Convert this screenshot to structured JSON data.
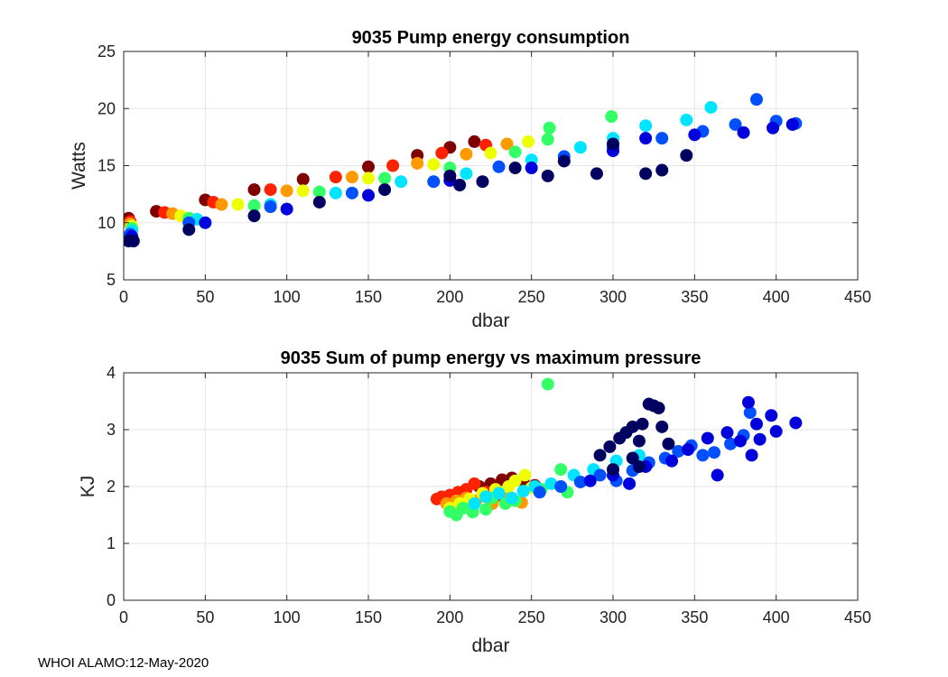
{
  "footer": "WHOI ALAMO:12-May-2020",
  "colors": {
    "grid": "#e6e6e6",
    "axis": "#262626"
  },
  "chart_data": [
    {
      "type": "scatter",
      "title": "9035 Pump energy consumption",
      "xlabel": "dbar",
      "ylabel": "Watts",
      "xlim": [
        0,
        450
      ],
      "ylim": [
        5,
        25
      ],
      "xticks": [
        0,
        50,
        100,
        150,
        200,
        250,
        300,
        350,
        400,
        450
      ],
      "yticks": [
        5,
        10,
        15,
        20,
        25
      ],
      "grid": true,
      "color_scale": "jet (dark red = early profiles, dark blue = late profiles)",
      "series": [
        {
          "name": "dark red profiles",
          "color": "#800000",
          "points": [
            [
              3,
              10.4
            ],
            [
              20,
              11.0
            ],
            [
              50,
              12.0
            ],
            [
              80,
              12.9
            ],
            [
              110,
              13.8
            ],
            [
              150,
              14.9
            ],
            [
              180,
              15.9
            ],
            [
              200,
              16.6
            ],
            [
              215,
              17.1
            ]
          ]
        },
        {
          "name": "red profiles",
          "color": "#ff2200",
          "points": [
            [
              4,
              10.1
            ],
            [
              25,
              10.9
            ],
            [
              55,
              11.8
            ],
            [
              90,
              12.9
            ],
            [
              130,
              14.0
            ],
            [
              165,
              15.0
            ],
            [
              195,
              16.1
            ],
            [
              222,
              16.8
            ]
          ]
        },
        {
          "name": "orange profiles",
          "color": "#ff9900",
          "points": [
            [
              4,
              9.9
            ],
            [
              30,
              10.8
            ],
            [
              60,
              11.6
            ],
            [
              100,
              12.8
            ],
            [
              140,
              14.0
            ],
            [
              180,
              15.2
            ],
            [
              210,
              16.0
            ],
            [
              235,
              16.9
            ]
          ]
        },
        {
          "name": "yellow profiles",
          "color": "#eeff00",
          "points": [
            [
              5,
              9.7
            ],
            [
              35,
              10.6
            ],
            [
              70,
              11.6
            ],
            [
              110,
              12.8
            ],
            [
              150,
              13.9
            ],
            [
              190,
              15.1
            ],
            [
              225,
              16.1
            ],
            [
              248,
              17.1
            ]
          ]
        },
        {
          "name": "green profiles",
          "color": "#33ff66",
          "points": [
            [
              5,
              9.5
            ],
            [
              40,
              10.4
            ],
            [
              80,
              11.5
            ],
            [
              120,
              12.7
            ],
            [
              160,
              13.9
            ],
            [
              200,
              14.8
            ],
            [
              240,
              16.2
            ],
            [
              260,
              17.3
            ],
            [
              261,
              18.3
            ],
            [
              299,
              19.3
            ]
          ]
        },
        {
          "name": "cyan profiles",
          "color": "#00e5ff",
          "points": [
            [
              5,
              9.3
            ],
            [
              45,
              10.3
            ],
            [
              90,
              11.6
            ],
            [
              130,
              12.6
            ],
            [
              170,
              13.6
            ],
            [
              210,
              14.3
            ],
            [
              250,
              15.5
            ],
            [
              280,
              16.6
            ],
            [
              300,
              17.4
            ],
            [
              320,
              18.5
            ],
            [
              345,
              19.0
            ],
            [
              360,
              20.1
            ]
          ]
        },
        {
          "name": "blue profiles",
          "color": "#0050ff",
          "points": [
            [
              4,
              9.0
            ],
            [
              40,
              10.0
            ],
            [
              90,
              11.4
            ],
            [
              140,
              12.6
            ],
            [
              190,
              13.6
            ],
            [
              230,
              14.9
            ],
            [
              270,
              15.8
            ],
            [
              300,
              16.6
            ],
            [
              330,
              17.4
            ],
            [
              355,
              18.0
            ],
            [
              375,
              18.6
            ],
            [
              388,
              20.8
            ],
            [
              400,
              18.9
            ],
            [
              412,
              18.7
            ]
          ]
        },
        {
          "name": "deep blue profiles",
          "color": "#0000dd",
          "points": [
            [
              5,
              8.8
            ],
            [
              50,
              10.0
            ],
            [
              100,
              11.2
            ],
            [
              150,
              12.4
            ],
            [
              200,
              13.7
            ],
            [
              250,
              14.8
            ],
            [
              300,
              16.3
            ],
            [
              320,
              17.4
            ],
            [
              350,
              17.7
            ],
            [
              380,
              17.9
            ],
            [
              398,
              18.3
            ],
            [
              410,
              18.6
            ]
          ]
        },
        {
          "name": "navy profiles",
          "color": "#000060",
          "points": [
            [
              3,
              8.4
            ],
            [
              6,
              8.4
            ],
            [
              40,
              9.4
            ],
            [
              80,
              10.6
            ],
            [
              120,
              11.8
            ],
            [
              160,
              12.9
            ],
            [
              200,
              14.1
            ],
            [
              206,
              13.3
            ],
            [
              220,
              13.6
            ],
            [
              240,
              14.8
            ],
            [
              260,
              14.1
            ],
            [
              270,
              15.4
            ],
            [
              290,
              14.3
            ],
            [
              300,
              16.9
            ],
            [
              320,
              14.3
            ],
            [
              330,
              14.6
            ],
            [
              345,
              15.9
            ]
          ]
        }
      ]
    },
    {
      "type": "scatter",
      "title": "9035 Sum of pump energy vs maximum pressure",
      "xlabel": "dbar",
      "ylabel": "KJ",
      "xlim": [
        0,
        450
      ],
      "ylim": [
        0,
        4
      ],
      "xticks": [
        0,
        50,
        100,
        150,
        200,
        250,
        300,
        350,
        400,
        450
      ],
      "yticks": [
        0,
        1,
        2,
        3,
        4
      ],
      "grid": true,
      "series": [
        {
          "name": "dark red profiles",
          "color": "#800000",
          "points": [
            [
              218,
              2.0
            ],
            [
              225,
              2.05
            ],
            [
              232,
              2.12
            ],
            [
              238,
              2.15
            ],
            [
              245,
              2.1
            ],
            [
              252,
              2.02
            ]
          ]
        },
        {
          "name": "red profiles",
          "color": "#ff2200",
          "points": [
            [
              192,
              1.78
            ],
            [
              195,
              1.82
            ],
            [
              200,
              1.85
            ],
            [
              205,
              1.9
            ],
            [
              210,
              1.95
            ],
            [
              215,
              2.05
            ],
            [
              222,
              1.9
            ],
            [
              230,
              1.85
            ]
          ]
        },
        {
          "name": "orange profiles",
          "color": "#ff9900",
          "points": [
            [
              198,
              1.7
            ],
            [
              204,
              1.75
            ],
            [
              210,
              1.8
            ],
            [
              216,
              1.75
            ],
            [
              226,
              1.7
            ],
            [
              236,
              1.8
            ],
            [
              244,
              1.72
            ]
          ]
        },
        {
          "name": "yellow profiles",
          "color": "#eeff00",
          "points": [
            [
              200,
              1.62
            ],
            [
              206,
              1.7
            ],
            [
              212,
              1.78
            ],
            [
              220,
              1.88
            ],
            [
              228,
              1.95
            ],
            [
              236,
              2.0
            ],
            [
              240,
              2.1
            ],
            [
              246,
              2.2
            ],
            [
              250,
              1.98
            ]
          ]
        },
        {
          "name": "green profiles",
          "color": "#33ff66",
          "points": [
            [
              200,
              1.56
            ],
            [
              204,
              1.5
            ],
            [
              208,
              1.62
            ],
            [
              214,
              1.55
            ],
            [
              222,
              1.6
            ],
            [
              226,
              1.8
            ],
            [
              234,
              1.7
            ],
            [
              240,
              1.75
            ],
            [
              256,
              1.95
            ],
            [
              268,
              2.3
            ],
            [
              272,
              1.9
            ],
            [
              260,
              3.8
            ]
          ]
        },
        {
          "name": "cyan profiles",
          "color": "#00e5ff",
          "points": [
            [
              215,
              1.7
            ],
            [
              222,
              1.82
            ],
            [
              230,
              1.88
            ],
            [
              238,
              1.8
            ],
            [
              245,
              1.92
            ],
            [
              252,
              2.0
            ],
            [
              262,
              2.05
            ],
            [
              276,
              2.2
            ],
            [
              288,
              2.3
            ],
            [
              302,
              2.45
            ],
            [
              316,
              2.55
            ]
          ]
        },
        {
          "name": "blue profiles",
          "color": "#0050ff",
          "points": [
            [
              255,
              1.9
            ],
            [
              268,
              2.0
            ],
            [
              280,
              2.08
            ],
            [
              292,
              2.2
            ],
            [
              302,
              2.1
            ],
            [
              312,
              2.28
            ],
            [
              322,
              2.42
            ],
            [
              332,
              2.5
            ],
            [
              340,
              2.62
            ],
            [
              348,
              2.72
            ],
            [
              355,
              2.55
            ],
            [
              362,
              2.6
            ],
            [
              372,
              2.75
            ],
            [
              380,
              2.9
            ],
            [
              384,
              3.3
            ]
          ]
        },
        {
          "name": "deep blue profiles",
          "color": "#0000dd",
          "points": [
            [
              286,
              2.1
            ],
            [
              300,
              2.2
            ],
            [
              310,
              2.05
            ],
            [
              320,
              2.35
            ],
            [
              336,
              2.45
            ],
            [
              346,
              2.65
            ],
            [
              358,
              2.85
            ],
            [
              364,
              2.2
            ],
            [
              370,
              2.95
            ],
            [
              378,
              2.8
            ],
            [
              383,
              3.48
            ],
            [
              385,
              2.55
            ],
            [
              388,
              3.1
            ],
            [
              390,
              2.83
            ],
            [
              397,
              3.25
            ],
            [
              400,
              2.97
            ],
            [
              412,
              3.12
            ]
          ]
        },
        {
          "name": "navy profiles",
          "color": "#000060",
          "points": [
            [
              292,
              2.55
            ],
            [
              298,
              2.7
            ],
            [
              304,
              2.85
            ],
            [
              308,
              2.95
            ],
            [
              312,
              3.05
            ],
            [
              316,
              2.8
            ],
            [
              318,
              3.1
            ],
            [
              322,
              3.45
            ],
            [
              325,
              3.42
            ],
            [
              328,
              3.38
            ],
            [
              330,
              3.05
            ],
            [
              334,
              2.75
            ],
            [
              316,
              2.35
            ],
            [
              300,
              2.3
            ],
            [
              312,
              2.5
            ]
          ]
        }
      ]
    }
  ]
}
